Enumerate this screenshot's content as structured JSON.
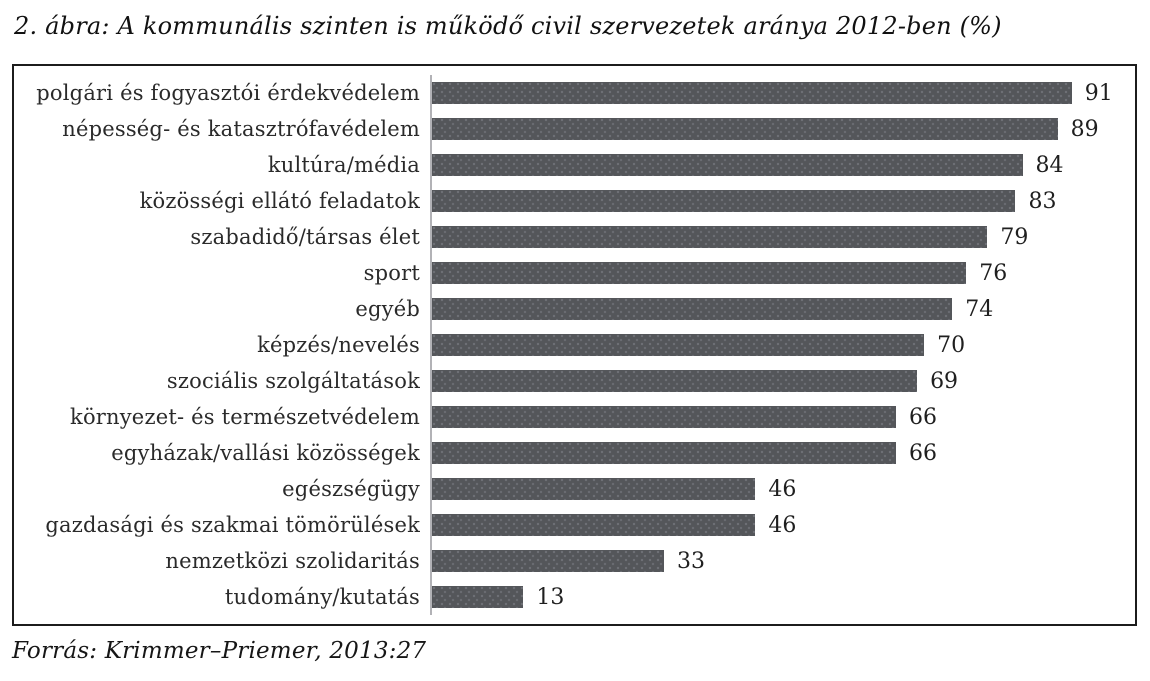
{
  "title": "2. ábra: A kommunális szinten is működő civil szervezetek aránya 2012-ben (%)",
  "source": "Forrás: Krimmer–Priemer, 2013:27",
  "colors": {
    "bar": "#54565a",
    "bar_dot_texture": "#6e7076",
    "axis_line": "#b2b2b6",
    "chart_border": "#1c1c1c",
    "text": "#1f1f1f"
  },
  "chart_data": {
    "type": "bar",
    "orientation": "horizontal",
    "title": "2. ábra: A kommunális szinten is működő civil szervezetek aránya 2012-ben (%)",
    "xlabel": "",
    "ylabel": "",
    "xlim": [
      0,
      100
    ],
    "grid": false,
    "legend": false,
    "value_labels": true,
    "categories": [
      "polgári és fogyasztói érdekvédelem",
      "népesség- és katasztrófavédelem",
      "kultúra/média",
      "közösségi ellátó feladatok",
      "szabadidő/társas élet",
      "sport",
      "egyéb",
      "képzés/nevelés",
      "szociális szolgáltatások",
      "környezet- és természetvédelem",
      "egyházak/vallási közösségek",
      "egészségügy",
      "gazdasági és szakmai tömörülések",
      "nemzetközi szolidaritás",
      "tudomány/kutatás"
    ],
    "values": [
      91,
      89,
      84,
      83,
      79,
      76,
      74,
      70,
      69,
      66,
      66,
      46,
      46,
      33,
      13
    ]
  }
}
